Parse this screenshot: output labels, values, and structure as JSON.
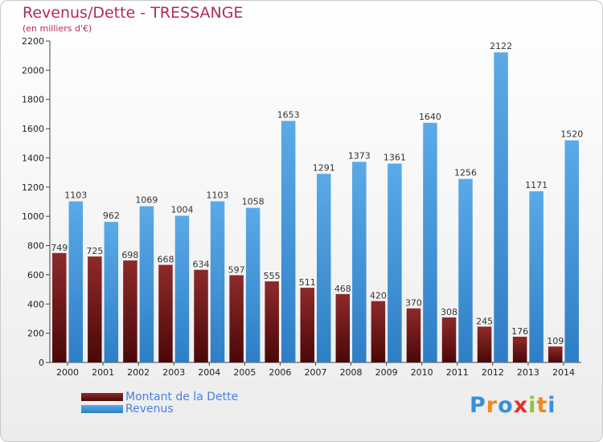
{
  "title": "Revenus/Dette - TRESSANGE",
  "subtitle": "(en milliers d'€)",
  "colors": {
    "debt_top": "#8e2a2a",
    "debt_bottom": "#4a0808",
    "revenue_top": "#5aaae8",
    "revenue_bottom": "#2e7ec6",
    "title": "#b02c5a",
    "legend_text": "#4a7ee6"
  },
  "legend": {
    "debt_label": "Montant de la Dette",
    "revenue_label": "Revenus"
  },
  "logo": {
    "letters": [
      "P",
      "r",
      "o",
      "x",
      "i",
      "t",
      "i"
    ],
    "colors": [
      "#3a8fd8",
      "#f08a1c",
      "#3a8fd8",
      "#e6302a",
      "#8cc63f",
      "#f08a1c",
      "#3a8fd8"
    ]
  },
  "chart_data": {
    "type": "bar",
    "categories": [
      "2000",
      "2001",
      "2002",
      "2003",
      "2004",
      "2005",
      "2006",
      "2007",
      "2008",
      "2009",
      "2010",
      "2011",
      "2012",
      "2013",
      "2014"
    ],
    "series": [
      {
        "name": "Montant de la Dette",
        "values": [
          749,
          725,
          698,
          668,
          634,
          597,
          555,
          511,
          468,
          420,
          370,
          308,
          245,
          176,
          109
        ]
      },
      {
        "name": "Revenus",
        "values": [
          1103,
          962,
          1069,
          1004,
          1103,
          1058,
          1653,
          1291,
          1373,
          1361,
          1640,
          1256,
          2122,
          1171,
          1520
        ]
      }
    ],
    "yticks": [
      "0",
      "200",
      "400",
      "600",
      "800",
      "1000",
      "1200",
      "1400",
      "1600",
      "1800",
      "2000",
      "2200"
    ],
    "ylim": [
      0,
      2200
    ],
    "grid": false,
    "legend_position": "bottom-left"
  }
}
